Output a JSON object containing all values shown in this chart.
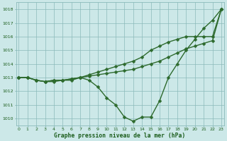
{
  "title": "Graphe pression niveau de la mer (hPa)",
  "x_labels": [
    "0",
    "1",
    "2",
    "3",
    "4",
    "5",
    "6",
    "7",
    "8",
    "9",
    "10",
    "11",
    "12",
    "13",
    "14",
    "15",
    "16",
    "17",
    "18",
    "19",
    "20",
    "21",
    "22",
    "23"
  ],
  "line1": [
    1013.0,
    1013.0,
    1012.8,
    1012.7,
    1012.7,
    1012.8,
    1012.8,
    1013.0,
    1012.8,
    1012.3,
    1011.5,
    1011.0,
    1010.1,
    1009.8,
    1010.1,
    1010.1,
    1011.3,
    1013.0,
    1014.0,
    1015.0,
    1015.8,
    1016.6,
    1017.2,
    1018.0
  ],
  "line2": [
    1013.0,
    1013.0,
    1012.8,
    1012.7,
    1012.8,
    1012.8,
    1012.9,
    1013.0,
    1013.1,
    1013.2,
    1013.3,
    1013.4,
    1013.5,
    1013.6,
    1013.8,
    1014.0,
    1014.2,
    1014.5,
    1014.8,
    1015.1,
    1015.3,
    1015.5,
    1015.7,
    1018.0
  ],
  "line3": [
    1013.0,
    1013.0,
    1012.8,
    1012.7,
    1012.8,
    1012.8,
    1012.9,
    1013.0,
    1013.2,
    1013.4,
    1013.6,
    1013.8,
    1014.0,
    1014.2,
    1014.5,
    1015.0,
    1015.3,
    1015.6,
    1015.8,
    1016.0,
    1016.0,
    1016.0,
    1016.0,
    1018.0
  ],
  "ylim": [
    1009.5,
    1018.5
  ],
  "yticks": [
    1010,
    1011,
    1012,
    1013,
    1014,
    1015,
    1016,
    1017,
    1018
  ],
  "line_color": "#2d6a2d",
  "bg_color": "#cce8e8",
  "grid_color": "#8bbaba",
  "title_color": "#1a5c1a",
  "marker_size": 2.5,
  "line_width": 1.0
}
